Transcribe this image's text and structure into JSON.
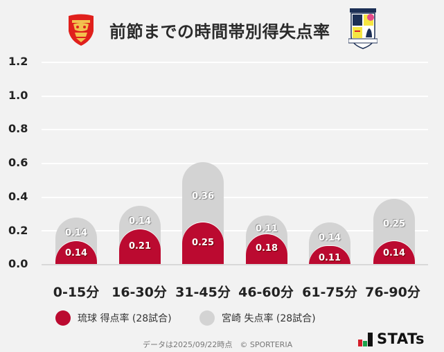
{
  "header": {
    "title": "前節までの時間帯別得失点率",
    "home_logo_icon": "ryukyu-crest-icon",
    "away_logo_icon": "miyazaki-crest-icon"
  },
  "colors": {
    "home": "#bb0a30",
    "away": "#d3d3d3",
    "background": "#f2f2f2"
  },
  "y_axis": {
    "ticks": [
      "1.2",
      "1.0",
      "0.8",
      "0.6",
      "0.4",
      "0.2",
      "0.0"
    ]
  },
  "x_axis": {
    "ticks": [
      "0-15分",
      "16-30分",
      "31-45分",
      "46-60分",
      "61-75分",
      "76-90分"
    ]
  },
  "bars": [
    {
      "home": "0.14",
      "away": "0.14"
    },
    {
      "home": "0.21",
      "away": "0.14"
    },
    {
      "home": "0.25",
      "away": "0.36"
    },
    {
      "home": "0.18",
      "away": "0.11"
    },
    {
      "home": "0.11",
      "away": "0.14"
    },
    {
      "home": "0.14",
      "away": "0.25"
    }
  ],
  "legend": {
    "home": "琉球 得点率 (28試合)",
    "away": "宮崎 失点率 (28試合)"
  },
  "footer": {
    "note": "データは2025/09/22時点　© SPORTERIA",
    "brand": "STATs"
  },
  "chart_data": {
    "type": "bar",
    "stacked": true,
    "title": "前節までの時間帯別得失点率",
    "categories": [
      "0-15分",
      "16-30分",
      "31-45分",
      "46-60分",
      "61-75分",
      "76-90分"
    ],
    "series": [
      {
        "name": "琉球 得点率 (28試合)",
        "color": "#bb0a30",
        "values": [
          0.14,
          0.21,
          0.25,
          0.18,
          0.11,
          0.14
        ]
      },
      {
        "name": "宮崎 失点率 (28試合)",
        "color": "#d3d3d3",
        "values": [
          0.14,
          0.14,
          0.36,
          0.11,
          0.14,
          0.25
        ]
      }
    ],
    "xlabel": "",
    "ylabel": "",
    "ylim": [
      0,
      1.2
    ],
    "yticks": [
      0.0,
      0.2,
      0.4,
      0.6,
      0.8,
      1.0,
      1.2
    ],
    "grid": true,
    "legend_position": "bottom"
  }
}
